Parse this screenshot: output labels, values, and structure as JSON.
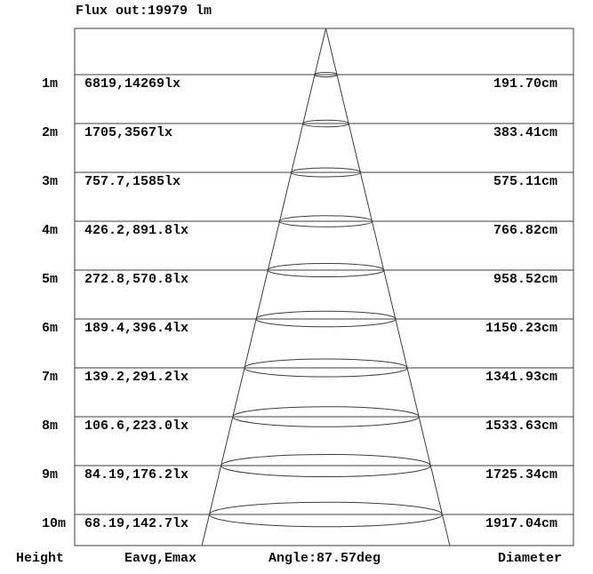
{
  "header": {
    "flux": "Flux out:19979 lm"
  },
  "footer": {
    "height": "Height",
    "eavg_emax": "Eavg,Emax",
    "angle": "Angle:87.57deg",
    "diameter": "Diameter"
  },
  "rows": [
    {
      "height": "1m",
      "eavg_emax": "6819,14269lx",
      "diameter": "191.70cm"
    },
    {
      "height": "2m",
      "eavg_emax": "1705,3567lx",
      "diameter": "383.41cm"
    },
    {
      "height": "3m",
      "eavg_emax": "757.7,1585lx",
      "diameter": "575.11cm"
    },
    {
      "height": "4m",
      "eavg_emax": "426.2,891.8lx",
      "diameter": "766.82cm"
    },
    {
      "height": "5m",
      "eavg_emax": "272.8,570.8lx",
      "diameter": "958.52cm"
    },
    {
      "height": "6m",
      "eavg_emax": "189.4,396.4lx",
      "diameter": "1150.23cm"
    },
    {
      "height": "7m",
      "eavg_emax": "139.2,291.2lx",
      "diameter": "1341.93cm"
    },
    {
      "height": "8m",
      "eavg_emax": "106.6,223.0lx",
      "diameter": "1533.63cm"
    },
    {
      "height": "9m",
      "eavg_emax": "84.19,176.2lx",
      "diameter": "1725.34cm"
    },
    {
      "height": "10m",
      "eavg_emax": "68.19,142.7lx",
      "diameter": "1917.04cm"
    }
  ],
  "colors": {
    "line": "#3d3d3d",
    "text": "#0a0a0a",
    "background": "#ffffff"
  },
  "chart_data": {
    "type": "cone-diagram",
    "title": "Flux out:19979 lm",
    "flux_out_lm": 19979,
    "beam_angle_deg": 87.57,
    "columns": [
      "Height",
      "Eavg,Emax",
      "Diameter"
    ],
    "heights_m": [
      1,
      2,
      3,
      4,
      5,
      6,
      7,
      8,
      9,
      10
    ],
    "eavg_lx": [
      6819,
      1705,
      757.7,
      426.2,
      272.8,
      189.4,
      139.2,
      106.6,
      84.19,
      68.19
    ],
    "emax_lx": [
      14269,
      3567,
      1585,
      891.8,
      570.8,
      396.4,
      291.2,
      223.0,
      176.2,
      142.7
    ],
    "diameter_cm": [
      191.7,
      383.41,
      575.11,
      766.82,
      958.52,
      1150.23,
      1341.93,
      1533.63,
      1725.34,
      1917.04
    ]
  }
}
